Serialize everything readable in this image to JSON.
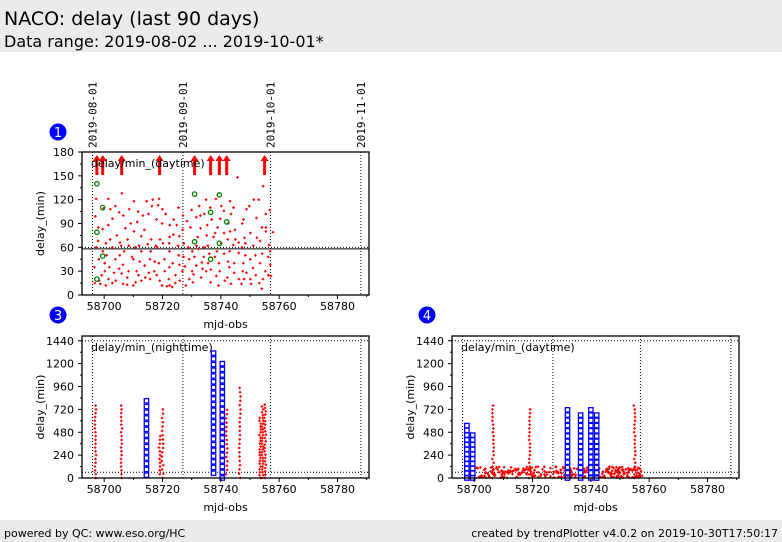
{
  "header": {
    "title": "NACO: delay (last 90 days)",
    "range": "Data range: 2019-08-02 ... 2019-10-01*"
  },
  "footer": {
    "left": "powered by QC: www.eso.org/HC",
    "right": "created by trendPlotter v4.0.2 on 2019-10-30T17:50:17"
  },
  "colors": {
    "header_bg": "#ebebeb",
    "badge": "#0000ff",
    "red": "#ff0000",
    "blue": "#0000ff",
    "green": "#008000"
  },
  "date_markers": [
    {
      "label": "2019-08-01",
      "mjd": 58696
    },
    {
      "label": "2019-09-01",
      "mjd": 58727
    },
    {
      "label": "2019-10-01",
      "mjd": 58757
    },
    {
      "label": "2019-11-01",
      "mjd": 58788
    }
  ],
  "chart_data": [
    {
      "id": "1",
      "type": "scatter",
      "title": "delay/min_(daytime)",
      "xlabel": "mjd-obs",
      "ylabel": "delay_(min)",
      "xlim": [
        58692.4,
        58790.8
      ],
      "ylim": [
        0,
        180
      ],
      "yticks": [
        0,
        30,
        60,
        90,
        120,
        150,
        180
      ],
      "xticks": [
        58700,
        58720,
        58740,
        58760,
        58780
      ],
      "threshold": 60,
      "threshold_style": "solid",
      "red_by_day": [
        [
          58697,
          15,
          35,
          60,
          99,
          121
        ],
        [
          58698,
          18,
          45,
          85,
          68
        ],
        [
          58699,
          25,
          55,
          14,
          83
        ],
        [
          58700,
          40,
          65,
          109,
          30
        ],
        [
          58701,
          12,
          50,
          88,
          121
        ],
        [
          58702,
          20,
          70,
          35,
          108
        ],
        [
          58703,
          60,
          28,
          96,
          15
        ],
        [
          58704,
          45,
          112,
          18,
          75
        ],
        [
          58705,
          66,
          104,
          33,
          50
        ],
        [
          58706,
          128,
          27,
          62,
          14
        ],
        [
          58707,
          55,
          100,
          38,
          84
        ],
        [
          58708,
          22,
          70,
          13,
          108
        ],
        [
          58709,
          48,
          90,
          62,
          30
        ],
        [
          58710,
          12,
          80,
          45,
          118
        ],
        [
          58711,
          30,
          60,
          16,
          92
        ],
        [
          58712,
          25,
          62,
          42,
          105
        ],
        [
          58713,
          18,
          74,
          100,
          55
        ],
        [
          58714,
          37,
          82,
          22,
          118
        ],
        [
          58715,
          45,
          102,
          64,
          28
        ],
        [
          58716,
          20,
          112,
          55,
          70
        ],
        [
          58717,
          30,
          120,
          62,
          42
        ],
        [
          58718,
          60,
          95,
          25,
          113
        ],
        [
          58719,
          121,
          40,
          70,
          18
        ],
        [
          58720,
          65,
          108,
          12,
          90
        ],
        [
          58721,
          45,
          102,
          30,
          11
        ],
        [
          58722,
          88,
          20,
          65,
          12
        ],
        [
          58723,
          55,
          73,
          35,
          10
        ],
        [
          58724,
          40,
          95,
          76,
          15
        ],
        [
          58725,
          62,
          88,
          25,
          50
        ],
        [
          58726,
          18,
          74,
          38,
          110
        ],
        [
          58727,
          82,
          100,
          48,
          30
        ],
        [
          58728,
          65,
          36,
          12,
          93
        ],
        [
          58729,
          45,
          85,
          20,
          60
        ],
        [
          58730,
          107,
          30,
          55,
          16
        ],
        [
          58731,
          98,
          48,
          62,
          26
        ],
        [
          58732,
          73,
          58,
          112,
          37
        ],
        [
          58733,
          84,
          41,
          22,
          100
        ],
        [
          58734,
          102,
          60,
          48,
          33
        ],
        [
          58735,
          120,
          62,
          30,
          75
        ],
        [
          58736,
          52,
          88,
          40,
          110
        ],
        [
          58737,
          32,
          73,
          16,
          95
        ],
        [
          58738,
          121,
          78,
          48,
          24
        ],
        [
          58739,
          12,
          40,
          85,
          55
        ],
        [
          58740,
          96,
          30,
          112,
          65
        ],
        [
          58741,
          52,
          78,
          18,
          106
        ],
        [
          58742,
          70,
          22,
          90,
          42
        ],
        [
          58743,
          118,
          55,
          35,
          80
        ],
        [
          58744,
          102,
          28,
          63,
          14
        ],
        [
          58745,
          70,
          40,
          82,
          110
        ],
        [
          58746,
          148,
          53,
          20,
          66
        ],
        [
          58747,
          90,
          30,
          60,
          14
        ],
        [
          58748,
          40,
          72,
          20,
          95
        ],
        [
          58749,
          65,
          28,
          108,
          50
        ],
        [
          58750,
          112,
          45,
          20,
          78
        ],
        [
          58751,
          34,
          120,
          62,
          14
        ],
        [
          58752,
          72,
          25,
          97,
          50
        ],
        [
          58753,
          120,
          40,
          15,
          68
        ],
        [
          58754,
          137,
          8,
          85,
          52
        ],
        [
          58755,
          102,
          30,
          80,
          20
        ],
        [
          58756,
          85,
          48,
          25,
          63
        ],
        [
          58757,
          107,
          55,
          24,
          38
        ],
        [
          58758,
          79
        ]
      ],
      "green": [
        [
          58697.5,
          140
        ],
        [
          58697.5,
          79
        ],
        [
          58697.5,
          20
        ],
        [
          58699.5,
          110
        ],
        [
          58699.5,
          49
        ],
        [
          58731,
          127
        ],
        [
          58731,
          67
        ],
        [
          58736.5,
          104
        ],
        [
          58736.5,
          45
        ],
        [
          58739.5,
          126
        ],
        [
          58739.5,
          65
        ],
        [
          58742,
          92
        ]
      ],
      "offscale_arrows": [
        58697.5,
        58699.5,
        58706,
        58719,
        58731,
        58736.5,
        58739.5,
        58742,
        58755
      ]
    },
    {
      "id": "3",
      "type": "scatter",
      "title": "delay/min_(nighttime)",
      "xlabel": "mjd-obs",
      "ylabel": "delay_(min)",
      "xlim": [
        58692.4,
        58790.8
      ],
      "ylim": [
        0,
        1490
      ],
      "yticks": [
        0,
        240,
        480,
        720,
        960,
        1200,
        1440
      ],
      "xticks": [
        58700,
        58720,
        58740,
        58760,
        58780
      ],
      "threshold": 60,
      "upper_line": 1440,
      "red_columns": [
        {
          "mjd": 58697,
          "from": 0,
          "to": 770,
          "step": 40
        },
        {
          "mjd": 58706,
          "from": 0,
          "to": 770,
          "step": 40
        },
        {
          "mjd": 58719,
          "from": 40,
          "to": 450,
          "step": 40
        },
        {
          "mjd": 58720,
          "from": 0,
          "to": 750,
          "step": 45
        },
        {
          "mjd": 58740.5,
          "from": 0,
          "to": 720,
          "step": 40
        },
        {
          "mjd": 58742,
          "from": 40,
          "to": 720,
          "step": 45
        },
        {
          "mjd": 58746.5,
          "from": 0,
          "to": 960,
          "step": 45
        },
        {
          "mjd": 58753.5,
          "from": 0,
          "to": 640,
          "step": 30
        },
        {
          "mjd": 58754.3,
          "from": 0,
          "to": 760,
          "step": 30
        },
        {
          "mjd": 58755.2,
          "from": 0,
          "to": 780,
          "step": 35
        }
      ],
      "blue_columns": [
        {
          "mjd": 58714.5,
          "from": 30,
          "to": 810,
          "step": 60
        },
        {
          "mjd": 58737.5,
          "from": 50,
          "to": 1330,
          "step": 60
        },
        {
          "mjd": 58740.5,
          "from": 0,
          "to": 1220,
          "step": 60
        }
      ]
    },
    {
      "id": "4",
      "type": "scatter",
      "title": "delay/min_(daytime)",
      "xlabel": "mjd-obs",
      "ylabel": "delay_(min)",
      "xlim": [
        58692.4,
        58790.8
      ],
      "ylim": [
        0,
        1490
      ],
      "yticks": [
        0,
        240,
        480,
        720,
        960,
        1200,
        1440
      ],
      "xticks": [
        58700,
        58720,
        58740,
        58760,
        58780
      ],
      "threshold": 60,
      "upper_line": 1440,
      "red_columns": [
        {
          "mjd": 58706.5,
          "from": 0,
          "to": 790,
          "step": 40
        },
        {
          "mjd": 58719,
          "from": 0,
          "to": 720,
          "step": 40
        },
        {
          "mjd": 58755,
          "from": 0,
          "to": 790,
          "step": 40
        }
      ],
      "red_band": {
        "from": 58697,
        "to": 58758,
        "max": 120
      },
      "blue_columns": [
        {
          "mjd": 58697.5,
          "from": 0,
          "to": 560,
          "step": 50
        },
        {
          "mjd": 58699.5,
          "from": 0,
          "to": 480,
          "step": 50
        },
        {
          "mjd": 58732,
          "from": 0,
          "to": 740,
          "step": 55
        },
        {
          "mjd": 58736.5,
          "from": 0,
          "to": 660,
          "step": 55
        },
        {
          "mjd": 58740,
          "from": 0,
          "to": 740,
          "step": 55
        },
        {
          "mjd": 58742,
          "from": 0,
          "to": 690,
          "step": 55
        }
      ]
    }
  ]
}
